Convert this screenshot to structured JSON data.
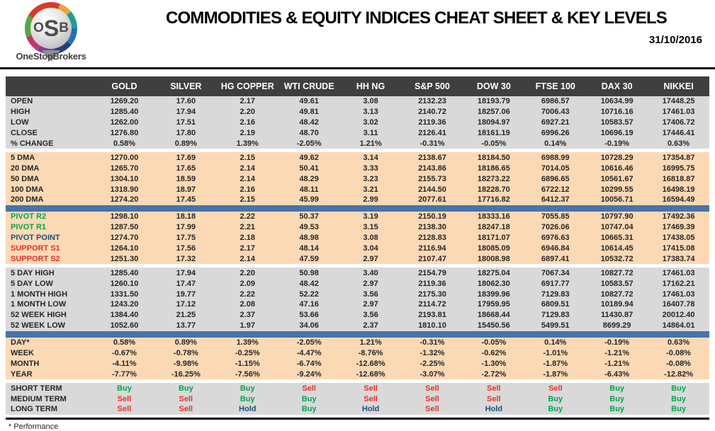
{
  "header": {
    "logo_letters": [
      "O",
      "S",
      "B"
    ],
    "logo_label": "OneStopBrokers",
    "title": "COMMODITIES & EQUITY INDICES CHEAT SHEET & KEY LEVELS",
    "date": "31/10/2016"
  },
  "colors": {
    "header_bar": "#3F3F3F",
    "band_gray": "#D9D9D9",
    "band_peach": "#FCD9B5",
    "divider_blue": "#4674A8",
    "green": "#00A551",
    "red": "#E8312A",
    "navy": "#1F4E79"
  },
  "table": {
    "columns": [
      "GOLD",
      "SILVER",
      "HG COPPER",
      "WTI CRUDE",
      "HH NG",
      "S&P 500",
      "DOW 30",
      "FTSE 100",
      "DAX 30",
      "NIKKEI"
    ],
    "sections": [
      {
        "name": "ohlc",
        "band": "gray",
        "separator": "none",
        "rows": [
          {
            "label": "OPEN",
            "values": [
              "1269.20",
              "17.60",
              "2.17",
              "49.61",
              "3.08",
              "2132.23",
              "18193.79",
              "6986.57",
              "10634.99",
              "17448.25"
            ]
          },
          {
            "label": "HIGH",
            "values": [
              "1285.40",
              "17.94",
              "2.20",
              "49.81",
              "3.13",
              "2140.72",
              "18257.06",
              "7006.43",
              "10716.16",
              "17461.03"
            ]
          },
          {
            "label": "LOW",
            "values": [
              "1262.00",
              "17.51",
              "2.16",
              "48.42",
              "3.02",
              "2119.36",
              "18094.97",
              "6927.21",
              "10583.57",
              "17406.72"
            ]
          },
          {
            "label": "CLOSE",
            "values": [
              "1276.80",
              "17.80",
              "2.19",
              "48.70",
              "3.11",
              "2126.41",
              "18161.19",
              "6996.26",
              "10696.19",
              "17446.41"
            ]
          },
          {
            "label": "% CHANGE",
            "values": [
              "0.58%",
              "0.89%",
              "1.39%",
              "-2.05%",
              "1.21%",
              "-0.31%",
              "-0.05%",
              "0.14%",
              "-0.19%",
              "0.63%"
            ]
          }
        ]
      },
      {
        "name": "moving-averages",
        "band": "peach",
        "separator": "gap",
        "rows": [
          {
            "label": "5 DMA",
            "values": [
              "1270.00",
              "17.69",
              "2.15",
              "49.62",
              "3.14",
              "2138.67",
              "18184.50",
              "6988.99",
              "10728.29",
              "17354.87"
            ]
          },
          {
            "label": "20 DMA",
            "values": [
              "1265.70",
              "17.65",
              "2.14",
              "50.41",
              "3.33",
              "2143.86",
              "18186.65",
              "7014.05",
              "10616.46",
              "16995.75"
            ]
          },
          {
            "label": "50 DMA",
            "values": [
              "1304.10",
              "18.59",
              "2.14",
              "48.29",
              "3.23",
              "2155.73",
              "18273.22",
              "6896.65",
              "10561.67",
              "16818.87"
            ]
          },
          {
            "label": "100 DMA",
            "values": [
              "1318.90",
              "18.97",
              "2.16",
              "48.11",
              "3.21",
              "2144.50",
              "18228.70",
              "6722.12",
              "10299.55",
              "16498.19"
            ]
          },
          {
            "label": "200 DMA",
            "values": [
              "1274.20",
              "17.45",
              "2.15",
              "45.99",
              "2.99",
              "2077.61",
              "17716.82",
              "6412.37",
              "10056.71",
              "16594.49"
            ]
          }
        ]
      },
      {
        "name": "pivots",
        "band": "peach",
        "separator": "blue",
        "rows": [
          {
            "label": "PIVOT R2",
            "color": "green",
            "values": [
              "1298.10",
              "18.18",
              "2.22",
              "50.37",
              "3.19",
              "2150.19",
              "18333.16",
              "7055.85",
              "10797.90",
              "17492.36"
            ]
          },
          {
            "label": "PIVOT R1",
            "color": "green",
            "values": [
              "1287.50",
              "17.99",
              "2.21",
              "49.53",
              "3.15",
              "2138.30",
              "18247.18",
              "7026.06",
              "10747.04",
              "17469.39"
            ]
          },
          {
            "label": "PIVOT POINT",
            "color": "navy",
            "values": [
              "1274.70",
              "17.75",
              "2.18",
              "48.98",
              "3.08",
              "2128.83",
              "18171.07",
              "6976.63",
              "10665.31",
              "17438.05"
            ]
          },
          {
            "label": "SUPPORT S1",
            "color": "red",
            "values": [
              "1264.10",
              "17.56",
              "2.17",
              "48.14",
              "3.04",
              "2116.94",
              "18085.09",
              "6946.84",
              "10614.45",
              "17415.08"
            ]
          },
          {
            "label": "SUPPORT S2",
            "color": "red",
            "values": [
              "1251.30",
              "17.32",
              "2.14",
              "47.59",
              "2.97",
              "2107.47",
              "18008.98",
              "6897.41",
              "10532.72",
              "17383.74"
            ]
          }
        ]
      },
      {
        "name": "ranges",
        "band": "gray",
        "separator": "gap",
        "rows": [
          {
            "label": "5 DAY HIGH",
            "values": [
              "1285.40",
              "17.94",
              "2.20",
              "50.98",
              "3.40",
              "2154.79",
              "18275.04",
              "7067.34",
              "10827.72",
              "17461.03"
            ]
          },
          {
            "label": "5 DAY LOW",
            "values": [
              "1260.10",
              "17.47",
              "2.09",
              "48.42",
              "2.97",
              "2119.36",
              "18062.30",
              "6917.77",
              "10583.57",
              "17162.21"
            ]
          },
          {
            "label": "1 MONTH HIGH",
            "values": [
              "1331.50",
              "19.77",
              "2.22",
              "52.22",
              "3.56",
              "2175.30",
              "18399.96",
              "7129.83",
              "10827.72",
              "17461.03"
            ]
          },
          {
            "label": "1 MONTH LOW",
            "values": [
              "1243.20",
              "17.12",
              "2.08",
              "47.16",
              "2.97",
              "2114.72",
              "17959.95",
              "6809.51",
              "10189.94",
              "16407.78"
            ]
          },
          {
            "label": "52 WEEK HIGH",
            "values": [
              "1384.40",
              "21.25",
              "2.37",
              "53.66",
              "3.56",
              "2193.81",
              "18668.44",
              "7129.83",
              "11430.87",
              "20012.40"
            ]
          },
          {
            "label": "52 WEEK LOW",
            "values": [
              "1052.60",
              "13.77",
              "1.97",
              "34.06",
              "2.37",
              "1810.10",
              "15450.56",
              "5499.51",
              "8699.29",
              "14864.01"
            ]
          }
        ]
      },
      {
        "name": "performance",
        "band": "peach",
        "separator": "blue",
        "rows": [
          {
            "label": "DAY*",
            "values": [
              "0.58%",
              "0.89%",
              "1.39%",
              "-2.05%",
              "1.21%",
              "-0.31%",
              "-0.05%",
              "0.14%",
              "-0.19%",
              "0.63%"
            ]
          },
          {
            "label": "WEEK",
            "values": [
              "-0.67%",
              "-0.78%",
              "-0.25%",
              "-4.47%",
              "-8.76%",
              "-1.32%",
              "-0.62%",
              "-1.01%",
              "-1.21%",
              "-0.08%"
            ]
          },
          {
            "label": "MONTH",
            "values": [
              "-4.11%",
              "-9.98%",
              "-1.15%",
              "-6.74%",
              "-12.68%",
              "-2.25%",
              "-1.30%",
              "-1.87%",
              "-1.21%",
              "-0.08%"
            ]
          },
          {
            "label": "YEAR",
            "values": [
              "-7.77%",
              "-16.25%",
              "-7.56%",
              "-9.24%",
              "-12.68%",
              "-3.07%",
              "-2.72%",
              "-1.87%",
              "-6.43%",
              "-12.82%"
            ]
          }
        ]
      },
      {
        "name": "signals",
        "band": "gray",
        "separator": "gap",
        "signals": true,
        "rows": [
          {
            "label": "SHORT TERM",
            "values": [
              "Buy",
              "Buy",
              "Buy",
              "Sell",
              "Sell",
              "Sell",
              "Sell",
              "Sell",
              "Buy",
              "Buy"
            ]
          },
          {
            "label": "MEDIUM TERM",
            "values": [
              "Sell",
              "Sell",
              "Buy",
              "Buy",
              "Sell",
              "Sell",
              "Sell",
              "Buy",
              "Buy",
              "Buy"
            ]
          },
          {
            "label": "LONG TERM",
            "values": [
              "Sell",
              "Sell",
              "Hold",
              "Buy",
              "Hold",
              "Sell",
              "Hold",
              "Buy",
              "Buy",
              "Buy"
            ]
          }
        ]
      }
    ]
  },
  "footer": {
    "note": "* Performance"
  }
}
